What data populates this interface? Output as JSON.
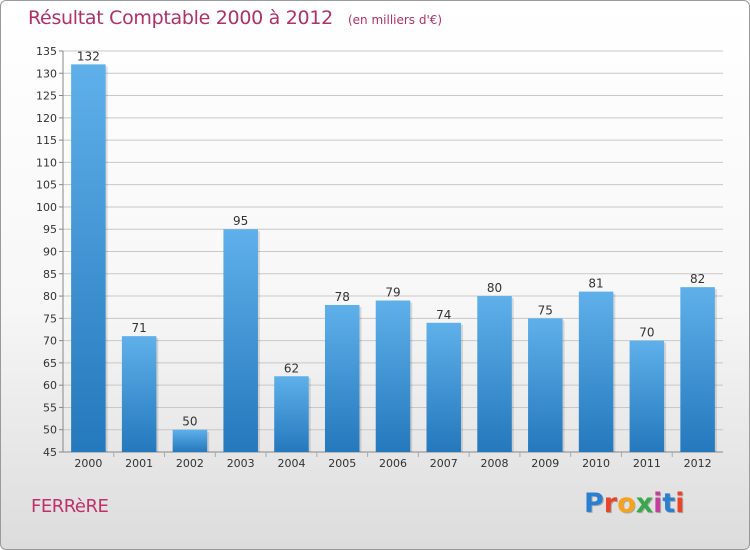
{
  "header": {
    "title": "Résultat Comptable 2000 à 2012",
    "unit": "(en milliers d'€)"
  },
  "footer": {
    "commune": "FERRèRE",
    "logo_text": "Proxiti",
    "logo_colors": [
      "#2a7fd0",
      "#e8462a",
      "#f5a31c",
      "#3aa84a",
      "#c43f9a",
      "#2a7fd0",
      "#e8462a"
    ]
  },
  "colors": {
    "bar_light": "#5fb0ea",
    "bar_dark": "#2478bc",
    "grid": "#c8c8c8",
    "axis_text": "#333333",
    "title": "#b0306a"
  },
  "chart_data": {
    "type": "bar",
    "title": "Résultat Comptable 2000 à 2012",
    "subtitle": "(en milliers d'€)",
    "xlabel": "",
    "ylabel": "",
    "categories": [
      "2000",
      "2001",
      "2002",
      "2003",
      "2004",
      "2005",
      "2006",
      "2007",
      "2008",
      "2009",
      "2010",
      "2011",
      "2012"
    ],
    "values": [
      132,
      71,
      50,
      95,
      62,
      78,
      79,
      74,
      80,
      75,
      81,
      70,
      82
    ],
    "ylim": [
      45,
      135
    ],
    "ytick_step": 5,
    "grid": true
  }
}
